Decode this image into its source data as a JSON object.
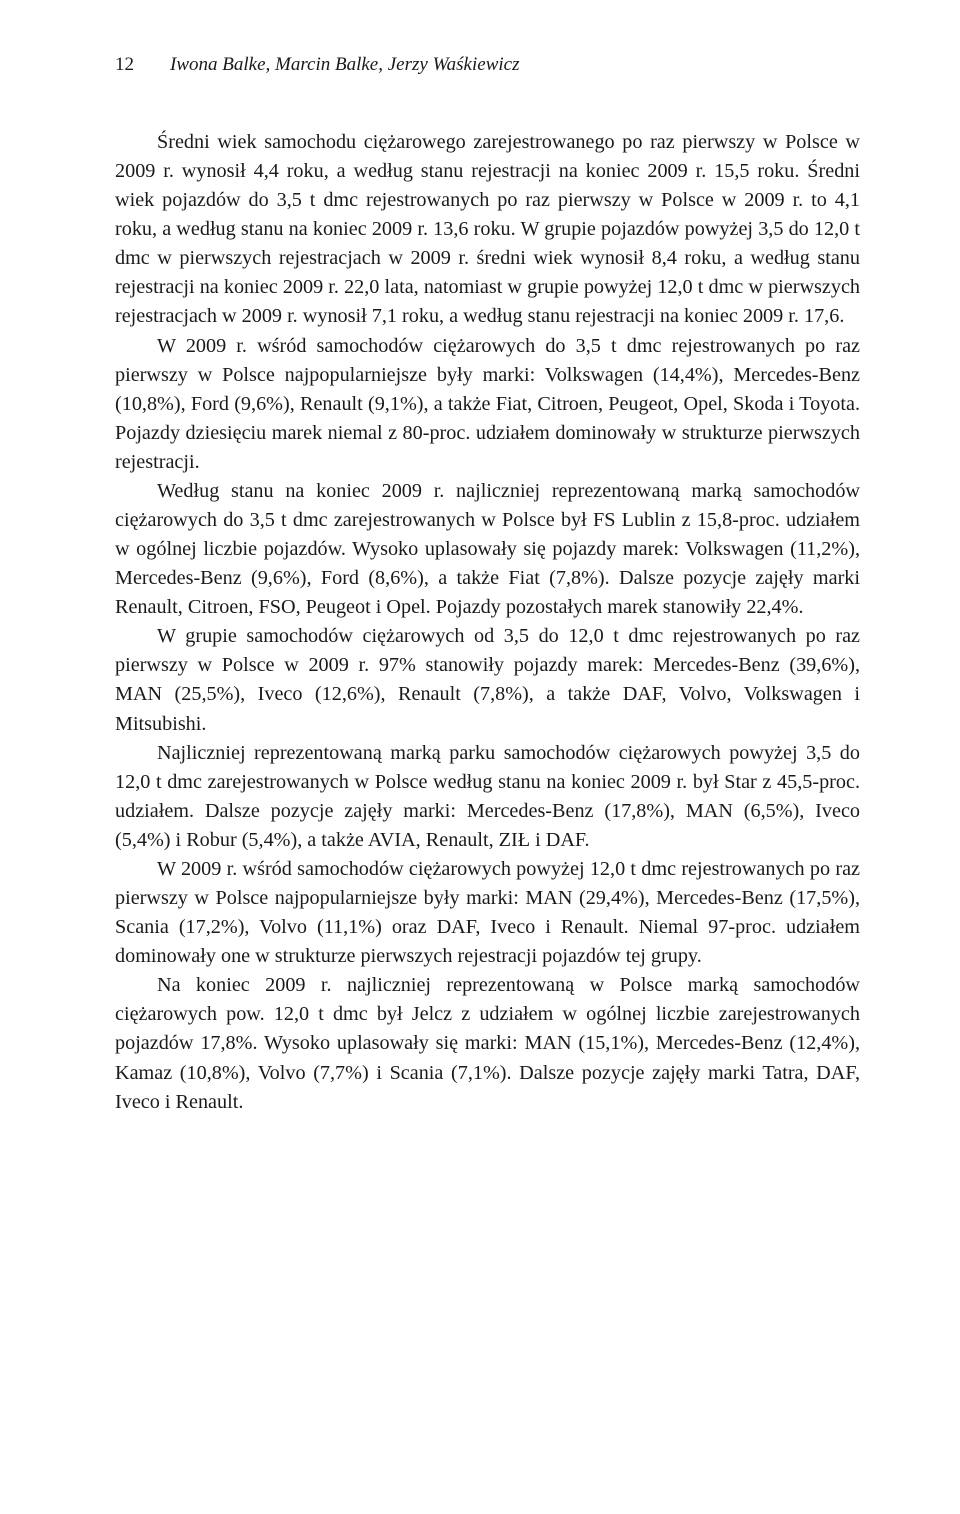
{
  "header": {
    "page_number": "12",
    "authors": "Iwona Balke, Marcin Balke, Jerzy Waśkiewicz"
  },
  "paragraphs": {
    "p1": "Średni wiek samochodu ciężarowego zarejestrowanego po raz pierwszy w Polsce w 2009 r. wynosił 4,4 roku, a według stanu rejestracji na koniec 2009 r. 15,5 roku. Średni wiek pojazdów do 3,5 t dmc rejestrowanych po raz pierwszy w Polsce w 2009 r. to 4,1 roku, a według stanu na koniec 2009 r. 13,6 roku. W grupie pojazdów powyżej 3,5 do 12,0 t dmc w pierwszych rejestracjach w 2009 r. średni wiek wynosił 8,4 roku, a według stanu rejestracji na koniec 2009 r. 22,0 lata, natomiast w grupie powyżej 12,0 t dmc w pierwszych rejestracjach w 2009 r. wynosił 7,1 roku, a według stanu rejestracji na koniec 2009 r. 17,6.",
    "p2": "W 2009 r. wśród samochodów ciężarowych do 3,5 t dmc rejestrowanych po raz pierwszy w Polsce najpopularniejsze były marki: Volkswagen (14,4%), Mercedes-Benz (10,8%), Ford (9,6%), Renault (9,1%), a także Fiat, Citroen, Peugeot, Opel, Skoda i Toyota. Pojazdy dziesięciu marek niemal z 80-proc. udziałem dominowały w strukturze pierwszych rejestracji.",
    "p3": "Według stanu na koniec 2009 r. najliczniej reprezentowaną marką samochodów ciężarowych do 3,5 t dmc zarejestrowanych w Polsce był FS Lublin z 15,8-proc. udziałem w ogólnej liczbie pojazdów. Wysoko uplasowały się pojazdy marek: Volkswagen (11,2%), Mercedes-Benz (9,6%), Ford (8,6%), a także Fiat (7,8%). Dalsze pozycje zajęły marki Renault, Citroen, FSO, Peugeot i Opel. Pojazdy pozostałych marek stanowiły 22,4%.",
    "p4": "W grupie samochodów ciężarowych od 3,5 do 12,0 t dmc rejestrowanych po raz pierwszy w Polsce w 2009 r. 97% stanowiły pojazdy marek: Mercedes-Benz (39,6%), MAN (25,5%), Iveco (12,6%), Renault (7,8%), a także DAF, Volvo, Volkswagen i Mitsubishi.",
    "p5": "Najliczniej reprezentowaną marką parku samochodów ciężarowych powyżej 3,5 do 12,0 t dmc zarejestrowanych w Polsce według stanu na koniec 2009 r. był Star z 45,5-proc. udziałem. Dalsze pozycje zajęły marki: Mercedes-Benz (17,8%), MAN (6,5%), Iveco (5,4%) i Robur (5,4%), a także AVIA, Renault, ZIŁ i DAF.",
    "p6": "W 2009 r. wśród samochodów ciężarowych powyżej 12,0 t dmc rejestrowanych po raz pierwszy w Polsce najpopularniejsze były marki: MAN (29,4%), Mercedes-Benz (17,5%), Scania (17,2%), Volvo (11,1%) oraz DAF, Iveco i Renault. Niemal 97-proc. udziałem dominowały one w strukturze pierwszych rejestracji pojazdów tej grupy.",
    "p7": "Na koniec 2009 r. najliczniej reprezentowaną w Polsce marką samochodów ciężarowych pow. 12,0 t dmc był Jelcz z udziałem w ogólnej liczbie zarejestrowanych pojazdów 17,8%. Wysoko uplasowały się marki: MAN (15,1%), Mercedes-Benz (12,4%), Kamaz (10,8%), Volvo (7,7%) i Scania (7,1%). Dalsze pozycje zajęły marki Tatra, DAF, Iveco i Renault."
  }
}
